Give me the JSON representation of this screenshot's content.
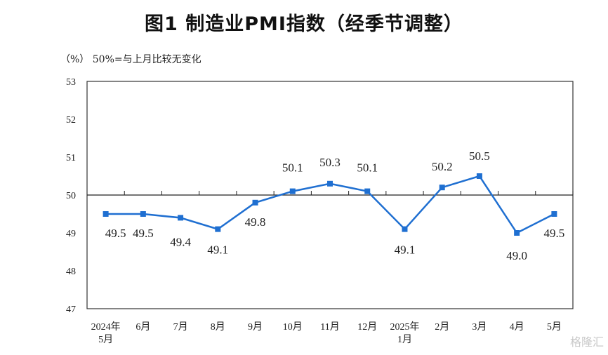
{
  "chart_data": {
    "type": "line",
    "title": "图1  制造业PMI指数（经季节调整）",
    "ylabel": "（%）",
    "note": "50%=与上月比较无变化",
    "categories": [
      [
        "2024年",
        "5月"
      ],
      [
        "6月"
      ],
      [
        "7月"
      ],
      [
        "8月"
      ],
      [
        "9月"
      ],
      [
        "10月"
      ],
      [
        "11月"
      ],
      [
        "12月"
      ],
      [
        "2025年",
        "1月"
      ],
      [
        "2月"
      ],
      [
        "3月"
      ],
      [
        "4月"
      ],
      [
        "5月"
      ]
    ],
    "series": [
      {
        "values": [
          49.5,
          49.5,
          49.4,
          49.1,
          49.8,
          50.1,
          50.3,
          50.1,
          49.1,
          50.2,
          50.5,
          49.0,
          49.5
        ]
      }
    ],
    "data_labels": [
      "49.5",
      "49.5",
      "49.4",
      "49.1",
      "49.8",
      "50.1",
      "50.3",
      "50.1",
      "49.1",
      "50.2",
      "50.5",
      "49.0",
      "49.5"
    ],
    "ylim": [
      47,
      53
    ],
    "yticks": [
      "47",
      "48",
      "49",
      "50",
      "51",
      "52",
      "53"
    ],
    "reference_line": 50,
    "grid": false,
    "line_color": "#1f6fd1",
    "marker": "square"
  },
  "watermark": "格隆汇"
}
